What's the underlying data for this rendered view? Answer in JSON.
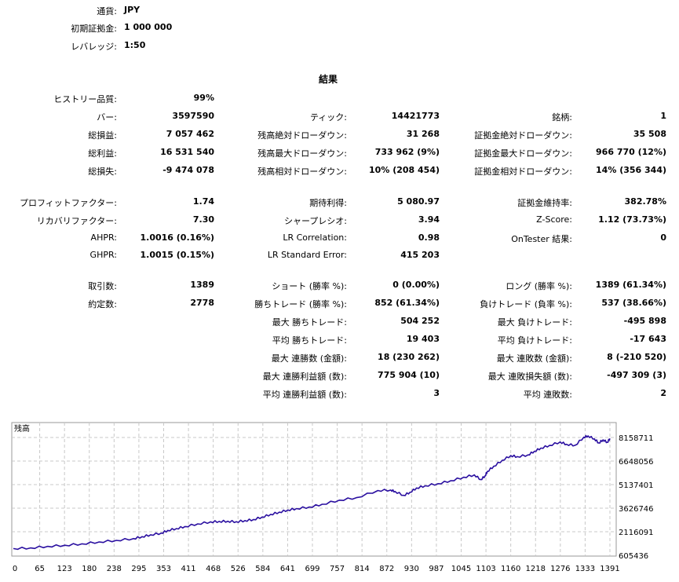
{
  "header": {
    "rows": [
      {
        "label": "通貨:",
        "value": "JPY"
      },
      {
        "label": "初期証拠金:",
        "value": "1 000 000"
      },
      {
        "label": "レバレッジ:",
        "value": "1:50"
      }
    ]
  },
  "results": {
    "title": "結果",
    "history_quality": {
      "label": "ヒストリー品質:",
      "value": "99%"
    },
    "block1": [
      [
        {
          "label": "バー:",
          "value": "3597590"
        },
        {
          "label": "ティック:",
          "value": "14421773"
        },
        {
          "label": "銘柄:",
          "value": "1"
        }
      ],
      [
        {
          "label": "総損益:",
          "value": "7 057 462"
        },
        {
          "label": "残高絶対ドローダウン:",
          "value": "31 268"
        },
        {
          "label": "証拠金絶対ドローダウン:",
          "value": "35 508"
        }
      ],
      [
        {
          "label": "総利益:",
          "value": "16 531 540"
        },
        {
          "label": "残高最大ドローダウン:",
          "value": "733 962 (9%)"
        },
        {
          "label": "証拠金最大ドローダウン:",
          "value": "966 770 (12%)"
        }
      ],
      [
        {
          "label": "総損失:",
          "value": "-9 474 078"
        },
        {
          "label": "残高相対ドローダウン:",
          "value": "10% (208 454)"
        },
        {
          "label": "証拠金相対ドローダウン:",
          "value": "14% (356 344)"
        }
      ]
    ],
    "block2": [
      [
        {
          "label": "プロフィットファクター:",
          "value": "1.74"
        },
        {
          "label": "期待利得:",
          "value": "5 080.97"
        },
        {
          "label": "証拠金維持率:",
          "value": "382.78%"
        }
      ],
      [
        {
          "label": "リカバリファクター:",
          "value": "7.30"
        },
        {
          "label": "シャープレシオ:",
          "value": "3.94"
        },
        {
          "label": "Z-Score:",
          "value": "1.12 (73.73%)"
        }
      ],
      [
        {
          "label": "AHPR:",
          "value": "1.0016 (0.16%)"
        },
        {
          "label": "LR Correlation:",
          "value": "0.98"
        },
        {
          "label": "OnTester 結果:",
          "value": "0"
        }
      ],
      [
        {
          "label": "GHPR:",
          "value": "1.0015 (0.15%)"
        },
        {
          "label": "LR Standard Error:",
          "value": "415 203"
        },
        {
          "label": "",
          "value": ""
        }
      ]
    ],
    "block3": [
      [
        {
          "label": "取引数:",
          "value": "1389"
        },
        {
          "label": "ショート (勝率 %):",
          "value": "0 (0.00%)"
        },
        {
          "label": "ロング (勝率 %):",
          "value": "1389 (61.34%)"
        }
      ],
      [
        {
          "label": "約定数:",
          "value": "2778"
        },
        {
          "label": "勝ちトレード (勝率 %):",
          "value": "852 (61.34%)"
        },
        {
          "label": "負けトレード (負率 %):",
          "value": "537 (38.66%)"
        }
      ],
      [
        {
          "label": "",
          "value": ""
        },
        {
          "label": "最大 勝ちトレード:",
          "value": "504 252"
        },
        {
          "label": "最大 負けトレード:",
          "value": "-495 898"
        }
      ],
      [
        {
          "label": "",
          "value": ""
        },
        {
          "label": "平均 勝ちトレード:",
          "value": "19 403"
        },
        {
          "label": "平均 負けトレード:",
          "value": "-17 643"
        }
      ],
      [
        {
          "label": "",
          "value": ""
        },
        {
          "label": "最大 連勝数 (金額):",
          "value": "18 (230 262)"
        },
        {
          "label": "最大 連敗数 (金額):",
          "value": "8 (-210 520)"
        }
      ],
      [
        {
          "label": "",
          "value": ""
        },
        {
          "label": "最大 連勝利益額 (数):",
          "value": "775 904 (10)"
        },
        {
          "label": "最大 連敗損失額 (数):",
          "value": "-497 309 (3)"
        }
      ],
      [
        {
          "label": "",
          "value": ""
        },
        {
          "label": "平均 連勝利益額 (数):",
          "value": "3"
        },
        {
          "label": "平均 連敗数:",
          "value": "2"
        }
      ]
    ]
  },
  "chart_data": {
    "type": "line",
    "title": "残高",
    "xlabel": "",
    "ylabel": "",
    "x_ticks": [
      "0",
      "65",
      "123",
      "180",
      "238",
      "295",
      "353",
      "411",
      "468",
      "526",
      "584",
      "641",
      "699",
      "757",
      "814",
      "872",
      "930",
      "987",
      "1045",
      "1103",
      "1160",
      "1218",
      "1276",
      "1333",
      "1391"
    ],
    "y_ticks": [
      "8158711",
      "6648056",
      "5137401",
      "3626746",
      "2116091",
      "605436"
    ],
    "ylim": [
      605436,
      8158711
    ],
    "xlim": [
      0,
      1391
    ],
    "grid": true,
    "line_color": "#2a0fa0",
    "series": [
      {
        "x": [
          0,
          40,
          80,
          120,
          160,
          200,
          240,
          280,
          300,
          320,
          345,
          360,
          380,
          400,
          430,
          460,
          480,
          500,
          520,
          540,
          560,
          580,
          600,
          620,
          640,
          660,
          690,
          720,
          760,
          800,
          850,
          880,
          890,
          910,
          925,
          940,
          960,
          990,
          1020,
          1050,
          1075,
          1090,
          1100,
          1105,
          1120,
          1140,
          1160,
          1175,
          1200,
          1215,
          1230,
          1250,
          1275,
          1290,
          1310,
          1330,
          1340,
          1355,
          1365,
          1375,
          1385,
          1391
        ],
        "y": [
          1040000,
          1080000,
          1180000,
          1250000,
          1340000,
          1460000,
          1560000,
          1680000,
          1800000,
          1920000,
          2030000,
          2200000,
          2320000,
          2450000,
          2620000,
          2750000,
          2780000,
          2790000,
          2760000,
          2830000,
          2900000,
          3060000,
          3230000,
          3370000,
          3510000,
          3600000,
          3700000,
          3880000,
          4140000,
          4300000,
          4760000,
          4790000,
          4700000,
          4450000,
          4650000,
          4920000,
          5060000,
          5200000,
          5390000,
          5610000,
          5760000,
          5460000,
          5700000,
          5980000,
          6310000,
          6700000,
          7000000,
          6930000,
          7040000,
          7280000,
          7480000,
          7650000,
          7870000,
          7720000,
          7660000,
          8180000,
          8260000,
          8070000,
          7810000,
          8010000,
          7850000,
          8100000
        ]
      }
    ]
  }
}
